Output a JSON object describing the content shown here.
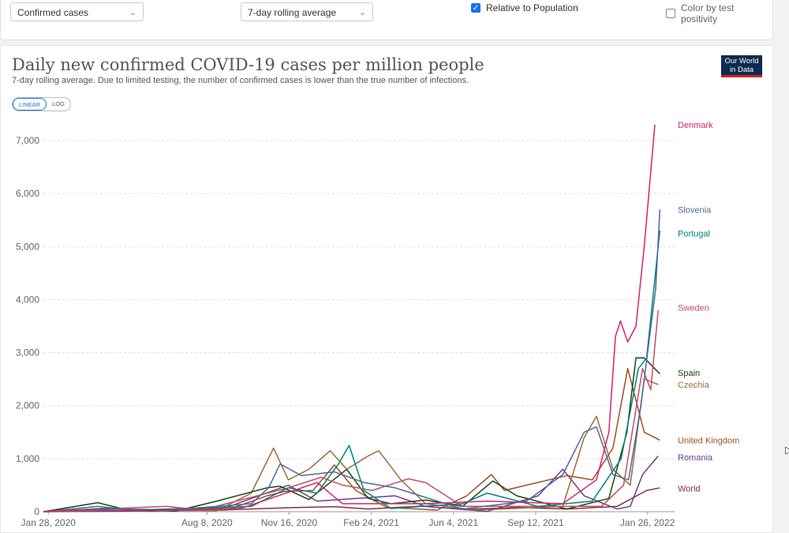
{
  "controls": {
    "metric_select": "Confirmed cases",
    "interval_select": "7-day rolling average",
    "relative_label": "Relative to Population",
    "relative_checked": true,
    "positivity_label": "Color by test positivity",
    "positivity_checked": false,
    "scale_linear": "LINEAR",
    "scale_log": "LOG"
  },
  "logo": {
    "line1": "Our World",
    "line2": "in Data"
  },
  "chart_data": {
    "type": "line",
    "title": "Daily new confirmed COVID-19 cases per million people",
    "subtitle": "7-day rolling average. Due to limited testing, the number of confirmed cases is lower than the true number of infections.",
    "xlabel": "",
    "ylabel": "",
    "x_start": "2020-01-22",
    "x_end": "2022-02-28",
    "ylim": [
      0,
      7300
    ],
    "yticks": [
      0,
      1000,
      2000,
      3000,
      4000,
      5000,
      6000,
      7000
    ],
    "ytick_labels": [
      "0",
      "1,000",
      "2,000",
      "3,000",
      "4,000",
      "5,000",
      "6,000",
      "7,000"
    ],
    "xticks": [
      {
        "date": "2020-01-28",
        "label": "Jan 28, 2020"
      },
      {
        "date": "2020-08-08",
        "label": "Aug 8, 2020"
      },
      {
        "date": "2020-11-16",
        "label": "Nov 16, 2020"
      },
      {
        "date": "2021-02-24",
        "label": "Feb 24, 2021"
      },
      {
        "date": "2021-06-04",
        "label": "Jun 4, 2021"
      },
      {
        "date": "2021-09-12",
        "label": "Sep 12, 2021"
      },
      {
        "date": "2022-01-26",
        "label": "Jan 26, 2022"
      }
    ],
    "grid": true,
    "legend": "right end labels",
    "series": [
      {
        "name": "Denmark",
        "color": "#d6246e",
        "points": [
          [
            "2020-01-22",
            0
          ],
          [
            "2020-03-20",
            40
          ],
          [
            "2020-06-01",
            10
          ],
          [
            "2020-09-20",
            70
          ],
          [
            "2020-12-20",
            550
          ],
          [
            "2021-01-20",
            150
          ],
          [
            "2021-05-01",
            150
          ],
          [
            "2021-07-15",
            200
          ],
          [
            "2021-10-15",
            150
          ],
          [
            "2021-11-25",
            600
          ],
          [
            "2021-12-10",
            1500
          ],
          [
            "2021-12-18",
            3300
          ],
          [
            "2021-12-24",
            3600
          ],
          [
            "2022-01-02",
            3200
          ],
          [
            "2022-01-12",
            3500
          ],
          [
            "2022-01-22",
            5000
          ],
          [
            "2022-02-04",
            7300
          ]
        ]
      },
      {
        "name": "Slovenia",
        "color": "#4c6a9c",
        "points": [
          [
            "2020-01-22",
            0
          ],
          [
            "2020-03-28",
            100
          ],
          [
            "2020-06-01",
            5
          ],
          [
            "2020-10-01",
            150
          ],
          [
            "2020-10-22",
            450
          ],
          [
            "2020-11-05",
            900
          ],
          [
            "2020-12-01",
            680
          ],
          [
            "2021-01-10",
            750
          ],
          [
            "2021-02-15",
            550
          ],
          [
            "2021-03-25",
            450
          ],
          [
            "2021-06-15",
            50
          ],
          [
            "2021-09-01",
            200
          ],
          [
            "2021-10-15",
            700
          ],
          [
            "2021-11-10",
            1500
          ],
          [
            "2021-11-25",
            1600
          ],
          [
            "2021-12-15",
            700
          ],
          [
            "2022-01-03",
            600
          ],
          [
            "2022-01-18",
            2000
          ],
          [
            "2022-02-05",
            4200
          ],
          [
            "2022-02-10",
            5700
          ]
        ]
      },
      {
        "name": "Portugal",
        "color": "#00847e",
        "points": [
          [
            "2020-01-22",
            0
          ],
          [
            "2020-04-01",
            60
          ],
          [
            "2020-06-01",
            40
          ],
          [
            "2020-10-01",
            100
          ],
          [
            "2020-11-15",
            450
          ],
          [
            "2020-12-20",
            350
          ],
          [
            "2021-01-15",
            900
          ],
          [
            "2021-01-28",
            1250
          ],
          [
            "2021-02-15",
            400
          ],
          [
            "2021-03-20",
            60
          ],
          [
            "2021-06-15",
            150
          ],
          [
            "2021-07-15",
            350
          ],
          [
            "2021-09-15",
            100
          ],
          [
            "2021-11-20",
            200
          ],
          [
            "2021-12-25",
            1000
          ],
          [
            "2022-01-15",
            2700
          ],
          [
            "2022-01-25",
            2900
          ],
          [
            "2022-02-10",
            5300
          ]
        ]
      },
      {
        "name": "Sweden",
        "color": "#c15065",
        "points": [
          [
            "2020-01-22",
            0
          ],
          [
            "2020-04-15",
            60
          ],
          [
            "2020-06-20",
            100
          ],
          [
            "2020-08-01",
            30
          ],
          [
            "2020-11-15",
            450
          ],
          [
            "2020-12-25",
            650
          ],
          [
            "2021-01-20",
            500
          ],
          [
            "2021-02-25",
            400
          ],
          [
            "2021-04-10",
            620
          ],
          [
            "2021-05-01",
            550
          ],
          [
            "2021-06-15",
            100
          ],
          [
            "2021-09-01",
            100
          ],
          [
            "2021-12-01",
            100
          ],
          [
            "2021-12-28",
            500
          ],
          [
            "2022-01-20",
            2700
          ],
          [
            "2022-01-30",
            2300
          ],
          [
            "2022-02-08",
            3800
          ]
        ]
      },
      {
        "name": "Spain",
        "color": "#18470f",
        "points": [
          [
            "2020-01-22",
            0
          ],
          [
            "2020-03-28",
            170
          ],
          [
            "2020-05-01",
            40
          ],
          [
            "2020-07-01",
            10
          ],
          [
            "2020-08-20",
            200
          ],
          [
            "2020-10-20",
            450
          ],
          [
            "2020-11-05",
            480
          ],
          [
            "2020-12-10",
            230
          ],
          [
            "2021-01-25",
            800
          ],
          [
            "2021-02-20",
            250
          ],
          [
            "2021-03-20",
            150
          ],
          [
            "2021-05-01",
            220
          ],
          [
            "2021-06-15",
            100
          ],
          [
            "2021-07-22",
            580
          ],
          [
            "2021-08-20",
            300
          ],
          [
            "2021-10-20",
            50
          ],
          [
            "2021-12-10",
            250
          ],
          [
            "2022-01-01",
            1500
          ],
          [
            "2022-01-12",
            2900
          ],
          [
            "2022-01-22",
            2900
          ],
          [
            "2022-02-10",
            2600
          ]
        ]
      },
      {
        "name": "Czechia",
        "color": "#996d39",
        "points": [
          [
            "2020-01-22",
            0
          ],
          [
            "2020-04-01",
            30
          ],
          [
            "2020-08-20",
            20
          ],
          [
            "2020-10-01",
            350
          ],
          [
            "2020-10-28",
            1200
          ],
          [
            "2020-11-15",
            600
          ],
          [
            "2020-12-10",
            800
          ],
          [
            "2021-01-05",
            1150
          ],
          [
            "2021-01-25",
            800
          ],
          [
            "2021-02-20",
            1050
          ],
          [
            "2021-03-05",
            1150
          ],
          [
            "2021-04-01",
            600
          ],
          [
            "2021-05-01",
            150
          ],
          [
            "2021-07-01",
            30
          ],
          [
            "2021-10-15",
            100
          ],
          [
            "2021-11-10",
            1400
          ],
          [
            "2021-11-25",
            1800
          ],
          [
            "2021-12-15",
            800
          ],
          [
            "2022-01-05",
            500
          ],
          [
            "2022-01-22",
            2500
          ],
          [
            "2022-02-08",
            2400
          ]
        ]
      },
      {
        "name": "United Kingdom",
        "color": "#9a5129",
        "points": [
          [
            "2020-01-22",
            0
          ],
          [
            "2020-04-15",
            70
          ],
          [
            "2020-06-01",
            20
          ],
          [
            "2020-09-01",
            30
          ],
          [
            "2020-10-20",
            300
          ],
          [
            "2020-11-10",
            380
          ],
          [
            "2020-12-15",
            400
          ],
          [
            "2021-01-10",
            880
          ],
          [
            "2021-02-05",
            400
          ],
          [
            "2021-03-15",
            80
          ],
          [
            "2021-05-15",
            30
          ],
          [
            "2021-06-20",
            300
          ],
          [
            "2021-07-20",
            700
          ],
          [
            "2021-08-05",
            400
          ],
          [
            "2021-09-01",
            500
          ],
          [
            "2021-10-20",
            680
          ],
          [
            "2021-11-20",
            600
          ],
          [
            "2021-12-15",
            1200
          ],
          [
            "2022-01-02",
            2700
          ],
          [
            "2022-01-22",
            1500
          ],
          [
            "2022-02-10",
            1350
          ]
        ]
      },
      {
        "name": "Romania",
        "color": "#6d3e91",
        "points": [
          [
            "2020-01-22",
            0
          ],
          [
            "2020-04-20",
            20
          ],
          [
            "2020-07-20",
            50
          ],
          [
            "2020-09-01",
            80
          ],
          [
            "2020-11-15",
            500
          ],
          [
            "2020-12-20",
            200
          ],
          [
            "2021-03-25",
            300
          ],
          [
            "2021-05-01",
            100
          ],
          [
            "2021-07-15",
            5
          ],
          [
            "2021-09-15",
            300
          ],
          [
            "2021-10-15",
            800
          ],
          [
            "2021-11-10",
            300
          ],
          [
            "2021-12-20",
            50
          ],
          [
            "2022-01-05",
            100
          ],
          [
            "2022-01-20",
            700
          ],
          [
            "2022-02-08",
            1050
          ]
        ]
      },
      {
        "name": "World",
        "color": "#883039",
        "points": [
          [
            "2020-01-22",
            0
          ],
          [
            "2020-06-01",
            15
          ],
          [
            "2020-09-01",
            35
          ],
          [
            "2020-11-15",
            75
          ],
          [
            "2021-01-10",
            95
          ],
          [
            "2021-02-20",
            50
          ],
          [
            "2021-04-25",
            105
          ],
          [
            "2021-06-20",
            45
          ],
          [
            "2021-08-20",
            80
          ],
          [
            "2021-10-20",
            50
          ],
          [
            "2021-12-20",
            100
          ],
          [
            "2022-01-25",
            400
          ],
          [
            "2022-02-10",
            450
          ]
        ]
      }
    ],
    "end_labels": [
      {
        "name": "Denmark",
        "value": 7300
      },
      {
        "name": "Slovenia",
        "value": 5700
      },
      {
        "name": "Portugal",
        "value": 5250
      },
      {
        "name": "Sweden",
        "value": 3850
      },
      {
        "name": "Spain",
        "value": 2620
      },
      {
        "name": "Czechia",
        "value": 2400
      },
      {
        "name": "United Kingdom",
        "value": 1350
      },
      {
        "name": "Romania",
        "value": 1030
      },
      {
        "name": "World",
        "value": 440
      }
    ]
  }
}
